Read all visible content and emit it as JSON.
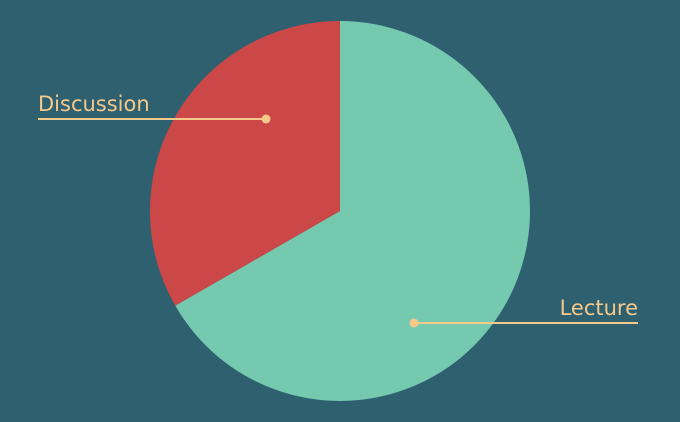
{
  "chart_data": {
    "type": "pie",
    "title": "",
    "slices": [
      {
        "label": "Lecture",
        "value": 66.7,
        "color": "#74c9ae"
      },
      {
        "label": "Discussion",
        "value": 33.3,
        "color": "#cc4747"
      }
    ],
    "start_angle_deg": 0,
    "direction": "clockwise",
    "background_color": "#2f6070",
    "label_color": "#f5c98a",
    "legend": "none"
  }
}
